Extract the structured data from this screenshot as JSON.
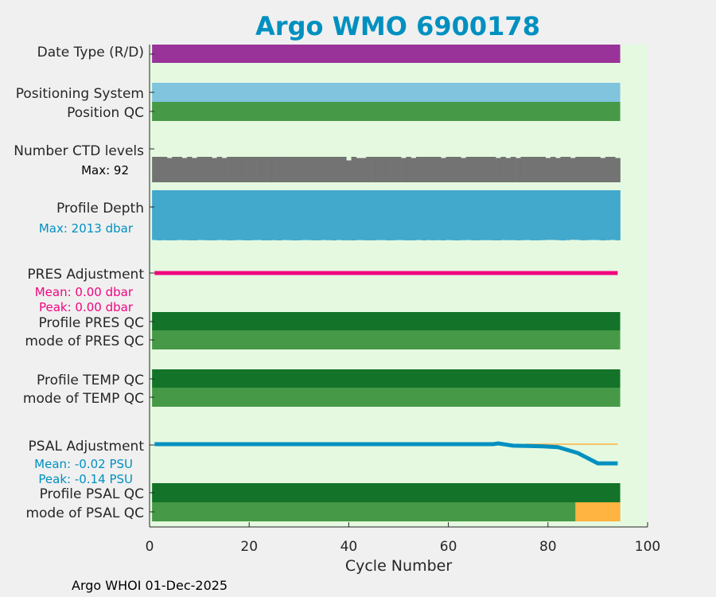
{
  "chart_data": {
    "type": "table",
    "title": "Argo WMO 6900178",
    "xlabel": "Cycle Number",
    "xlim": [
      0,
      100
    ],
    "xticks": [
      "0",
      "20",
      "40",
      "60",
      "80",
      "100"
    ],
    "footer": "Argo WHOI 01-Dec-2025",
    "n_cycles": 94,
    "rows": {
      "date_type": {
        "label": "Date Type (R/D)",
        "color": "#993399"
      },
      "positioning_system": {
        "label": "Positioning System",
        "color": "#80c4de"
      },
      "position_qc": {
        "label": "Position QC",
        "color": "#469946"
      },
      "ctd_levels": {
        "label": "Number CTD levels",
        "max_label": "Max: 92",
        "color": "#737373",
        "values": [
          92,
          92,
          92,
          91,
          92,
          92,
          91,
          92,
          91,
          92,
          92,
          92,
          91,
          92,
          91,
          92,
          92,
          92,
          92,
          92,
          92,
          92,
          92,
          92,
          92,
          92,
          92,
          92,
          92,
          92,
          92,
          92,
          92,
          92,
          92,
          92,
          92,
          92,
          92,
          89,
          92,
          91,
          91,
          92,
          92,
          92,
          92,
          92,
          92,
          92,
          91,
          92,
          91,
          92,
          92,
          92,
          92,
          92,
          91,
          92,
          92,
          92,
          91,
          92,
          92,
          92,
          92,
          92,
          92,
          91,
          92,
          91,
          92,
          91,
          92,
          92,
          92,
          92,
          92,
          91,
          92,
          91,
          92,
          92,
          91,
          92,
          92,
          92,
          92,
          92,
          91,
          92,
          92,
          91
        ]
      },
      "profile_depth": {
        "label": "Profile Depth",
        "max_label": "Max: 2013 dbar",
        "color": "#42a8cc",
        "values": [
          2000,
          2013,
          2005,
          2010,
          2013,
          2000,
          2003,
          2010,
          2013,
          2000,
          2004,
          2013,
          2010,
          2000,
          2003,
          2013,
          2008,
          2000,
          2010,
          2013,
          2003,
          2000,
          2013,
          2010,
          2004,
          2013,
          2000,
          2005,
          2013,
          2010,
          2000,
          2003,
          2013,
          2010,
          2000,
          2005,
          2013,
          2000,
          2010,
          2008,
          2013,
          2000,
          2005,
          2013,
          2010,
          2000,
          2003,
          2013,
          2010,
          2000,
          2005,
          2013,
          2010,
          2000,
          2013,
          2003,
          2010,
          2005,
          2013,
          2000,
          2010,
          2013,
          2003,
          2000,
          2013,
          2010,
          2005,
          2003,
          2010,
          2013,
          2000,
          2005,
          2003,
          2013,
          2005,
          2000,
          2013,
          2010,
          2003,
          1995,
          1995,
          2005,
          2013,
          2003,
          1990,
          1995,
          2010,
          2003,
          1995,
          2000,
          2013,
          2005,
          1995,
          2010
        ]
      },
      "pres_adjustment": {
        "label": "PRES Adjustment",
        "mean_label": "Mean: 0.00 dbar",
        "peak_label": "Peak: 0.00 dbar",
        "color": "#f0047f",
        "value": 0.0
      },
      "profile_pres_qc": {
        "label": "Profile PRES QC",
        "color": "#137329"
      },
      "mode_pres_qc": {
        "label": "mode of PRES QC",
        "color": "#469946"
      },
      "profile_temp_qc": {
        "label": "Profile TEMP QC",
        "color": "#137329"
      },
      "mode_temp_qc": {
        "label": "mode of TEMP QC",
        "color": "#469946"
      },
      "psal_adjustment": {
        "label": "PSAL Adjustment",
        "mean_label": "Mean: -0.02 PSU",
        "peak_label": "Peak: -0.14 PSU",
        "color": "#0090c0",
        "ref_color": "#ffb340",
        "ref_start_cycle": 75.5,
        "points": [
          [
            1,
            0
          ],
          [
            69,
            0
          ],
          [
            70,
            0.005
          ],
          [
            71,
            0
          ],
          [
            73,
            -0.01
          ],
          [
            76,
            -0.012
          ],
          [
            79,
            -0.015
          ],
          [
            82,
            -0.02
          ],
          [
            86,
            -0.06
          ],
          [
            90,
            -0.13
          ],
          [
            94,
            -0.13
          ]
        ]
      },
      "profile_psal_qc": {
        "label": "Profile PSAL QC",
        "color": "#137329"
      },
      "mode_psal_qc": {
        "label": "mode of PSAL QC",
        "color": "#469946",
        "flag_color": "#ffb340",
        "flag_start_cycle": 86
      }
    }
  }
}
